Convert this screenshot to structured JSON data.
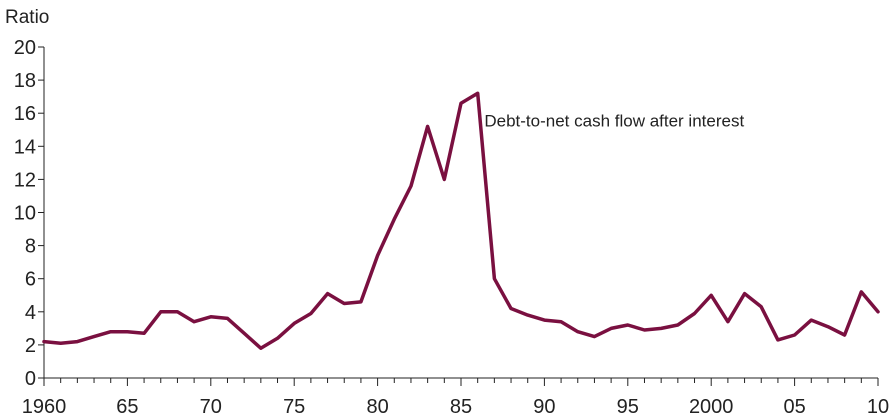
{
  "chart_data": {
    "type": "line",
    "ylabel": "Ratio",
    "xlabel": "",
    "ylim": [
      0,
      20
    ],
    "xlim": [
      1960,
      2010
    ],
    "grid": false,
    "yticks": [
      0,
      2,
      4,
      6,
      8,
      10,
      12,
      14,
      16,
      18,
      20
    ],
    "ytick_labels": [
      "0",
      "2",
      "4",
      "6",
      "8",
      "10",
      "12",
      "14",
      "16",
      "18",
      "20"
    ],
    "xticks": [
      1960,
      1965,
      1970,
      1975,
      1980,
      1985,
      1990,
      1995,
      2000,
      2005,
      2010
    ],
    "xtick_labels": [
      "1960",
      "65",
      "70",
      "75",
      "80",
      "85",
      "90",
      "95",
      "2000",
      "05",
      "10"
    ],
    "colors": {
      "line": "#7a1040",
      "axis": "#222222"
    },
    "series": [
      {
        "x": [
          1960,
          1961,
          1962,
          1963,
          1964,
          1965,
          1966,
          1967,
          1968,
          1969,
          1970,
          1971,
          1972,
          1973,
          1974,
          1975,
          1976,
          1977,
          1978,
          1979,
          1980,
          1981,
          1982,
          1983,
          1984,
          1985,
          1986,
          1987,
          1988,
          1989,
          1990,
          1991,
          1992,
          1993,
          1994,
          1995,
          1996,
          1997,
          1998,
          1999,
          2000,
          2001,
          2002,
          2003,
          2004,
          2005,
          2006,
          2007,
          2008,
          2009,
          2010
        ],
        "values": [
          2.2,
          2.1,
          2.2,
          2.5,
          2.8,
          2.8,
          2.7,
          4.0,
          4.0,
          3.4,
          3.7,
          3.6,
          2.7,
          1.8,
          2.4,
          3.3,
          3.9,
          5.1,
          4.5,
          4.6,
          7.4,
          9.6,
          11.6,
          15.2,
          12.0,
          16.6,
          17.2,
          6.0,
          4.2,
          3.8,
          3.5,
          3.4,
          2.8,
          2.5,
          3.0,
          3.2,
          2.9,
          3.0,
          3.2,
          3.9,
          5.0,
          3.4,
          5.1,
          4.3,
          2.3,
          2.6,
          3.5,
          3.1,
          2.6,
          5.2,
          4.0
        ]
      }
    ],
    "annotations": [
      {
        "text": "Debt-to-net cash flow after interest",
        "x": 1986.4,
        "y": 15.2
      }
    ]
  }
}
